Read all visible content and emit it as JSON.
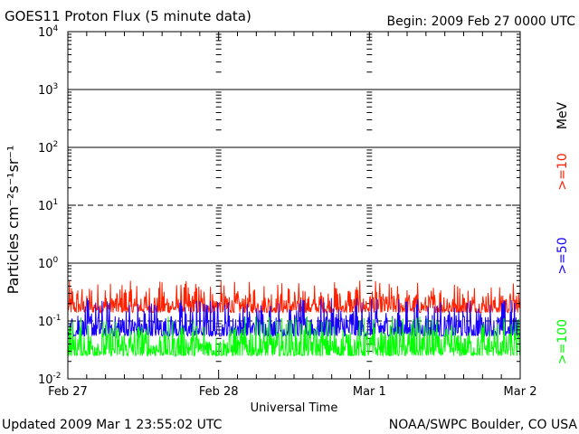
{
  "header": {
    "title": "GOES11 Proton Flux (5 minute data)",
    "begin": "Begin: 2009 Feb 27 0000 UTC"
  },
  "footer": {
    "updated": "Updated 2009 Mar  1 23:55:02 UTC",
    "credit": "NOAA/SWPC Boulder, CO USA"
  },
  "chart_data": {
    "type": "line",
    "title": "GOES11 Proton Flux (5 minute data)",
    "xlabel": "Universal Time",
    "ylabel": "Particles cm⁻²s⁻¹sr⁻¹",
    "y_scale": "log",
    "ylim": [
      0.01,
      10000
    ],
    "xlim_days": [
      0,
      3
    ],
    "x_tick_labels": [
      "Feb 27",
      "Feb 28",
      "Mar 1",
      "Mar 2"
    ],
    "y_ticks": [
      {
        "base": "10",
        "exp": "-2",
        "value": 0.01
      },
      {
        "base": "10",
        "exp": "-1",
        "value": 0.1
      },
      {
        "base": "10",
        "exp": "0",
        "value": 1
      },
      {
        "base": "10",
        "exp": "1",
        "value": 10
      },
      {
        "base": "10",
        "exp": "2",
        "value": 100
      },
      {
        "base": "10",
        "exp": "3",
        "value": 1000
      },
      {
        "base": "10",
        "exp": "4",
        "value": 10000
      }
    ],
    "threshold_lines": [
      {
        "value": 10,
        "style": "dashed"
      },
      {
        "value": 0.1,
        "style": "dashed"
      }
    ],
    "unit_label": "MeV",
    "series": [
      {
        "name": ">=10",
        "color": "#ff2000",
        "level_min": 0.14,
        "level_max": 0.5
      },
      {
        "name": ">=50",
        "color": "#1800ff",
        "level_min": 0.055,
        "level_max": 0.25
      },
      {
        "name": ">=100",
        "color": "#00ff00",
        "level_min": 0.025,
        "level_max": 0.12
      }
    ]
  }
}
